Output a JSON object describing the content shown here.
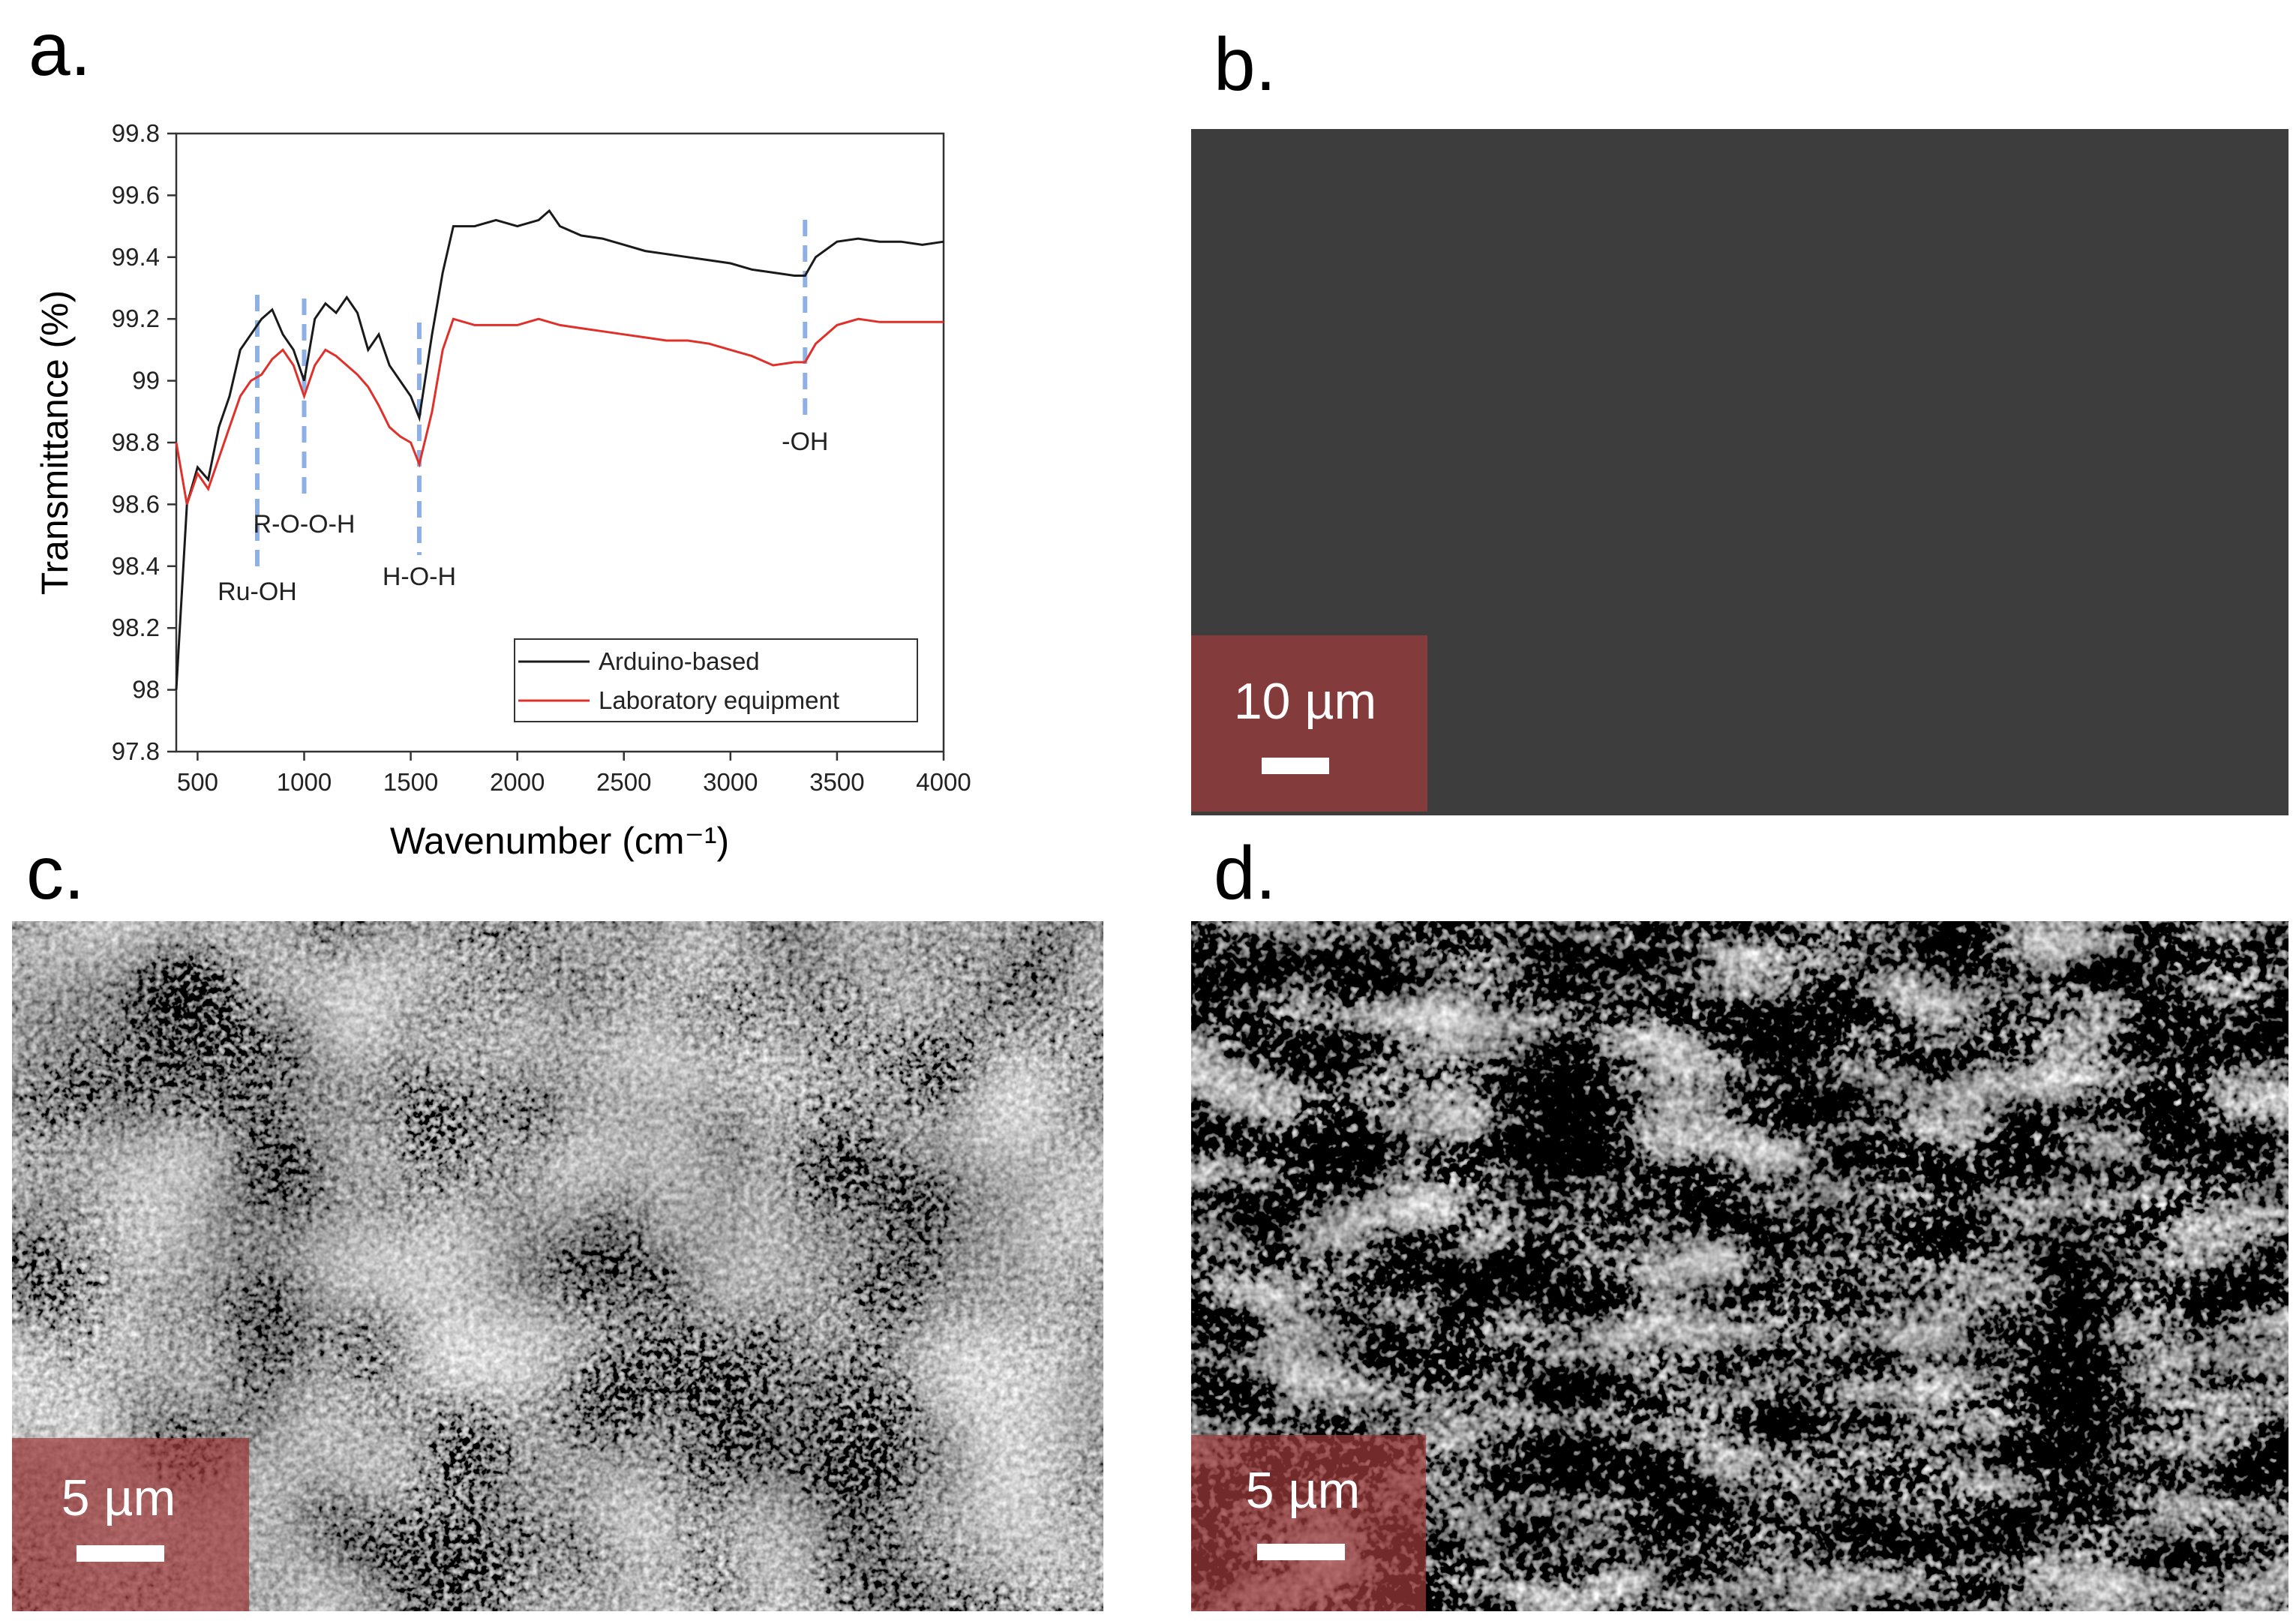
{
  "panels": {
    "a": {
      "label": "a."
    },
    "b": {
      "label": "b.",
      "scale_bar": "10 µm"
    },
    "c": {
      "label": "c.",
      "scale_bar": "5 µm"
    },
    "d": {
      "label": "d.",
      "scale_bar": "5 µm"
    }
  },
  "chart_data": {
    "type": "line",
    "x_label": "Wavenumber (cm⁻¹)",
    "y_label": "Transmittance (%)",
    "xlim": [
      400,
      4000
    ],
    "xticks": [
      500,
      1000,
      1500,
      2000,
      2500,
      3000,
      3500,
      4000
    ],
    "ylim": [
      97.8,
      99.8
    ],
    "yticks": [
      97.8,
      98,
      98.2,
      98.4,
      98.6,
      98.8,
      99,
      99.2,
      99.4,
      99.6,
      99.8
    ],
    "legend": "lower right",
    "x": [
      400,
      450,
      500,
      550,
      600,
      650,
      700,
      750,
      800,
      850,
      900,
      950,
      1000,
      1050,
      1100,
      1150,
      1200,
      1250,
      1300,
      1350,
      1400,
      1450,
      1500,
      1540,
      1600,
      1650,
      1700,
      1800,
      1900,
      2000,
      2100,
      2150,
      2200,
      2300,
      2400,
      2500,
      2600,
      2700,
      2800,
      2900,
      3000,
      3100,
      3200,
      3300,
      3350,
      3400,
      3500,
      3600,
      3700,
      3800,
      3900,
      4000
    ],
    "series": [
      {
        "name": "Arduino-based",
        "color": "#1a1a1a",
        "values": [
          98.0,
          98.6,
          98.72,
          98.68,
          98.85,
          98.95,
          99.1,
          99.15,
          99.2,
          99.23,
          99.15,
          99.1,
          99.0,
          99.2,
          99.25,
          99.22,
          99.27,
          99.22,
          99.1,
          99.15,
          99.05,
          99.0,
          98.95,
          98.88,
          99.15,
          99.35,
          99.5,
          99.5,
          99.52,
          99.5,
          99.52,
          99.55,
          99.5,
          99.47,
          99.46,
          99.44,
          99.42,
          99.41,
          99.4,
          99.39,
          99.38,
          99.36,
          99.35,
          99.34,
          99.34,
          99.4,
          99.45,
          99.46,
          99.45,
          99.45,
          99.44,
          99.45
        ]
      },
      {
        "name": "Laboratory equipment",
        "color": "#e0302a",
        "values": [
          98.8,
          98.6,
          98.7,
          98.65,
          98.75,
          98.85,
          98.95,
          99.0,
          99.02,
          99.07,
          99.1,
          99.05,
          98.95,
          99.05,
          99.1,
          99.08,
          99.05,
          99.02,
          98.98,
          98.92,
          98.85,
          98.82,
          98.8,
          98.73,
          98.9,
          99.1,
          99.2,
          99.18,
          99.18,
          99.18,
          99.2,
          99.19,
          99.18,
          99.17,
          99.16,
          99.15,
          99.14,
          99.13,
          99.13,
          99.12,
          99.1,
          99.08,
          99.05,
          99.06,
          99.06,
          99.12,
          99.18,
          99.2,
          99.19,
          99.19,
          99.19,
          99.19
        ]
      }
    ],
    "annotations": [
      {
        "text": "Ru-OH",
        "x": 780
      },
      {
        "text": "R-O-O-H",
        "x": 1000
      },
      {
        "text": "H-O-H",
        "x": 1540
      },
      {
        "text": "-OH",
        "x": 3350
      }
    ]
  }
}
